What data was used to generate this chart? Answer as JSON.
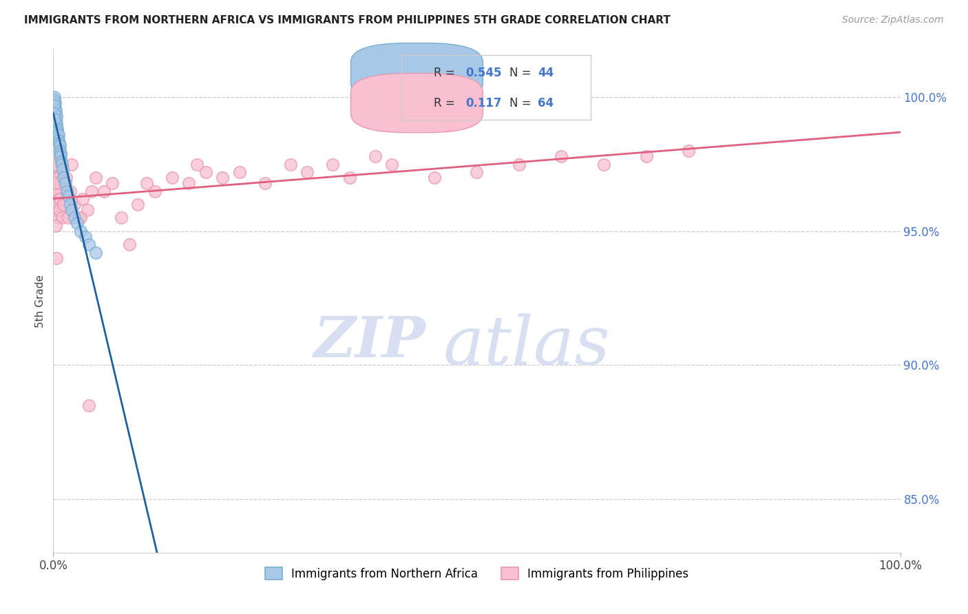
{
  "title": "IMMIGRANTS FROM NORTHERN AFRICA VS IMMIGRANTS FROM PHILIPPINES 5TH GRADE CORRELATION CHART",
  "source": "Source: ZipAtlas.com",
  "ylabel": "5th Grade",
  "R_blue": 0.545,
  "N_blue": 44,
  "R_pink": 0.117,
  "N_pink": 64,
  "blue_color": "#a8c8e8",
  "blue_edge_color": "#7aaed0",
  "pink_color": "#f8c0d0",
  "pink_edge_color": "#e898b0",
  "blue_line_color": "#2060a0",
  "pink_line_color": "#e06080",
  "legend_label_blue": "Immigrants from Northern Africa",
  "legend_label_pink": "Immigrants from Philippines",
  "x_range": [
    0.0,
    100.0
  ],
  "y_range": [
    83.0,
    101.8
  ],
  "y_ticks": [
    85.0,
    90.0,
    95.0,
    100.0
  ],
  "watermark_text": "ZIPatlas",
  "blue_scatter_x": [
    0.05,
    0.08,
    0.1,
    0.12,
    0.15,
    0.18,
    0.2,
    0.22,
    0.25,
    0.28,
    0.3,
    0.32,
    0.35,
    0.38,
    0.4,
    0.45,
    0.5,
    0.55,
    0.6,
    0.65,
    0.7,
    0.75,
    0.8,
    0.85,
    0.9,
    0.95,
    1.0,
    1.1,
    1.2,
    1.4,
    1.6,
    1.8,
    2.0,
    2.2,
    2.5,
    2.8,
    3.2,
    3.8,
    4.2,
    5.0,
    0.06,
    0.09,
    0.14,
    0.16
  ],
  "blue_scatter_y": [
    99.8,
    99.6,
    100.0,
    99.5,
    99.7,
    99.4,
    99.8,
    99.3,
    99.6,
    99.2,
    99.5,
    99.1,
    99.3,
    98.9,
    99.0,
    98.8,
    98.7,
    98.5,
    98.6,
    98.4,
    98.3,
    98.2,
    98.0,
    97.9,
    97.8,
    97.6,
    97.5,
    97.3,
    97.0,
    96.8,
    96.5,
    96.3,
    96.0,
    95.8,
    95.5,
    95.3,
    95.0,
    94.8,
    94.5,
    94.2,
    99.9,
    99.7,
    99.4,
    99.2
  ],
  "pink_scatter_x": [
    0.05,
    0.08,
    0.1,
    0.15,
    0.18,
    0.2,
    0.25,
    0.28,
    0.3,
    0.35,
    0.4,
    0.45,
    0.5,
    0.55,
    0.6,
    0.65,
    0.7,
    0.8,
    0.9,
    1.0,
    1.2,
    1.5,
    1.8,
    2.0,
    2.5,
    3.0,
    3.5,
    4.0,
    4.5,
    5.0,
    6.0,
    7.0,
    8.0,
    9.0,
    10.0,
    12.0,
    14.0,
    16.0,
    18.0,
    20.0,
    22.0,
    25.0,
    28.0,
    30.0,
    33.0,
    35.0,
    38.0,
    40.0,
    45.0,
    50.0,
    55.0,
    60.0,
    65.0,
    70.0,
    75.0,
    0.12,
    0.22,
    0.32,
    0.42,
    2.2,
    3.2,
    4.2,
    11.0,
    17.0
  ],
  "pink_scatter_y": [
    97.8,
    96.5,
    98.0,
    97.5,
    96.2,
    97.2,
    97.0,
    95.8,
    96.8,
    96.5,
    97.3,
    96.0,
    97.0,
    95.5,
    96.5,
    97.0,
    95.8,
    96.2,
    96.8,
    95.5,
    96.0,
    97.0,
    95.5,
    96.5,
    96.0,
    95.5,
    96.2,
    95.8,
    96.5,
    97.0,
    96.5,
    96.8,
    95.5,
    94.5,
    96.0,
    96.5,
    97.0,
    96.8,
    97.2,
    97.0,
    97.2,
    96.8,
    97.5,
    97.2,
    97.5,
    97.0,
    97.8,
    97.5,
    97.0,
    97.2,
    97.5,
    97.8,
    97.5,
    97.8,
    98.0,
    97.5,
    96.8,
    95.2,
    94.0,
    97.5,
    95.5,
    88.5,
    96.8,
    97.5
  ]
}
